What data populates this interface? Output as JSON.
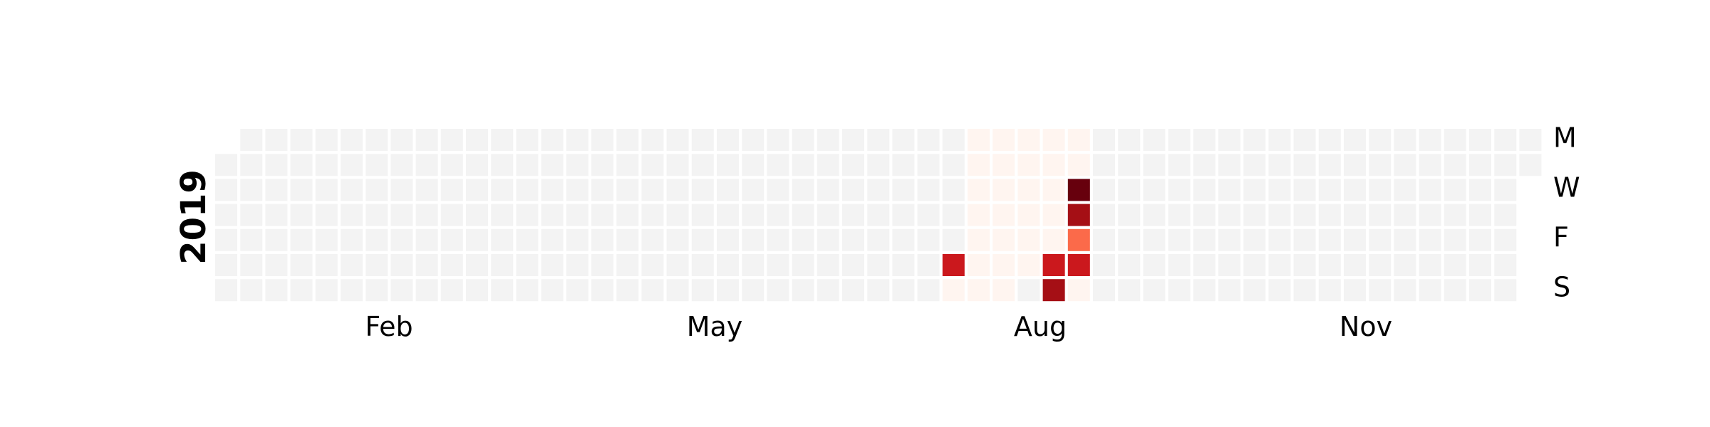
{
  "chart_data": {
    "type": "heatmap",
    "title": "",
    "xlabel": "",
    "ylabel": "",
    "year": "2019",
    "x_tick_labels": [
      "Feb",
      "May",
      "Aug",
      "Nov"
    ],
    "y_tick_labels": [
      "M",
      "W",
      "F",
      "S"
    ],
    "first_date": "2019-01-01",
    "last_date": "2019-12-31",
    "colors": {
      "empty": "#f3f3f3",
      "scale": [
        "#fff5f0",
        "#fcbba1",
        "#fc9272",
        "#fb6a4a",
        "#ef3b2c",
        "#cb181d",
        "#a50f15",
        "#67000d"
      ]
    },
    "values": [
      {
        "date": "2019-07-28",
        "value": 0
      },
      {
        "date": "2019-07-29",
        "value": 0
      },
      {
        "date": "2019-07-30",
        "value": 0
      },
      {
        "date": "2019-07-31",
        "value": 0
      },
      {
        "date": "2019-08-01",
        "value": 0
      },
      {
        "date": "2019-08-02",
        "value": 0
      },
      {
        "date": "2019-08-03",
        "value": 0
      },
      {
        "date": "2019-08-04",
        "value": 0
      },
      {
        "date": "2019-08-05",
        "value": 0
      },
      {
        "date": "2019-08-06",
        "value": 0
      },
      {
        "date": "2019-08-07",
        "value": 0
      },
      {
        "date": "2019-08-08",
        "value": 0
      },
      {
        "date": "2019-08-09",
        "value": 0
      },
      {
        "date": "2019-08-10",
        "value": 0
      },
      {
        "date": "2019-08-11",
        "value": 0
      },
      {
        "date": "2019-08-12",
        "value": 0
      },
      {
        "date": "2019-08-13",
        "value": 0
      },
      {
        "date": "2019-08-14",
        "value": 0
      },
      {
        "date": "2019-08-15",
        "value": 0
      },
      {
        "date": "2019-08-16",
        "value": 0
      },
      {
        "date": "2019-08-17",
        "value": 0
      },
      {
        "date": "2019-08-19",
        "value": 0
      },
      {
        "date": "2019-08-20",
        "value": 0
      },
      {
        "date": "2019-08-21",
        "value": 0
      },
      {
        "date": "2019-08-22",
        "value": 0
      },
      {
        "date": "2019-08-23",
        "value": 0
      },
      {
        "date": "2019-08-24",
        "value": 5
      },
      {
        "date": "2019-08-25",
        "value": 6
      },
      {
        "date": "2019-08-26",
        "value": 0
      },
      {
        "date": "2019-08-27",
        "value": 0
      },
      {
        "date": "2019-08-28",
        "value": 8
      },
      {
        "date": "2019-08-29",
        "value": 6
      },
      {
        "date": "2019-08-30",
        "value": 3
      },
      {
        "date": "2019-08-31",
        "value": 5
      },
      {
        "date": "2019-09-01",
        "value": 0
      },
      {
        "date": "2019-07-27",
        "value": 5
      }
    ]
  }
}
